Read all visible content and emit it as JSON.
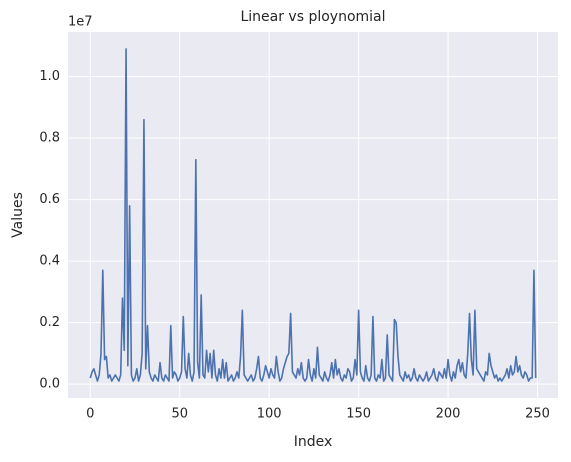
{
  "chart_data": {
    "type": "line",
    "title": "Linear vs ploynomial",
    "xlabel": "Index",
    "ylabel": "Values",
    "offset_label": "1e7",
    "color": "#4c72b0",
    "grid": true,
    "xlim": [
      -12.45,
      261.45
    ],
    "xticks": [
      0,
      50,
      100,
      150,
      200,
      250
    ],
    "ylim": [
      -0.045,
      1.145
    ],
    "yticks": [
      {
        "value": 0,
        "label": "0.0"
      },
      {
        "value": 0.2,
        "label": "0.2"
      },
      {
        "value": 0.4,
        "label": "0.4"
      },
      {
        "value": 0.6,
        "label": "0.6"
      },
      {
        "value": 0.8,
        "label": "0.8"
      },
      {
        "value": 1.0,
        "label": "1.0"
      }
    ],
    "values": [
      0.02,
      0.04,
      0.05,
      0.03,
      0.01,
      0.03,
      0.1,
      0.37,
      0.08,
      0.09,
      0.02,
      0.03,
      0.01,
      0.02,
      0.03,
      0.02,
      0.01,
      0.03,
      0.28,
      0.11,
      1.09,
      0.06,
      0.58,
      0.03,
      0.01,
      0.02,
      0.05,
      0.01,
      0.03,
      0.1,
      0.86,
      0.05,
      0.19,
      0.04,
      0.02,
      0.01,
      0.03,
      0.02,
      0.01,
      0.07,
      0.02,
      0.01,
      0.03,
      0.02,
      0.01,
      0.19,
      0.02,
      0.04,
      0.03,
      0.01,
      0.02,
      0.04,
      0.22,
      0.05,
      0.02,
      0.1,
      0.03,
      0.01,
      0.04,
      0.73,
      0.07,
      0.02,
      0.29,
      0.03,
      0.02,
      0.11,
      0.04,
      0.1,
      0.02,
      0.11,
      0.03,
      0.01,
      0.05,
      0.02,
      0.08,
      0.02,
      0.07,
      0.01,
      0.02,
      0.03,
      0.01,
      0.02,
      0.04,
      0.02,
      0.09,
      0.24,
      0.03,
      0.02,
      0.01,
      0.02,
      0.03,
      0.01,
      0.02,
      0.05,
      0.09,
      0.02,
      0.01,
      0.03,
      0.06,
      0.04,
      0.02,
      0.05,
      0.03,
      0.02,
      0.09,
      0.04,
      0.01,
      0.02,
      0.05,
      0.07,
      0.09,
      0.1,
      0.23,
      0.04,
      0.03,
      0.02,
      0.05,
      0.03,
      0.07,
      0.02,
      0.01,
      0.02,
      0.08,
      0.03,
      0.01,
      0.05,
      0.02,
      0.12,
      0.03,
      0.02,
      0.01,
      0.04,
      0.02,
      0.01,
      0.03,
      0.07,
      0.02,
      0.08,
      0.03,
      0.05,
      0.02,
      0.01,
      0.03,
      0.02,
      0.05,
      0.04,
      0.01,
      0.02,
      0.08,
      0.03,
      0.24,
      0.04,
      0.02,
      0.01,
      0.06,
      0.02,
      0.01,
      0.03,
      0.22,
      0.02,
      0.01,
      0.03,
      0.02,
      0.08,
      0.01,
      0.02,
      0.16,
      0.03,
      0.02,
      0.01,
      0.21,
      0.2,
      0.09,
      0.03,
      0.02,
      0.01,
      0.04,
      0.02,
      0.03,
      0.01,
      0.02,
      0.05,
      0.02,
      0.01,
      0.03,
      0.02,
      0.01,
      0.02,
      0.04,
      0.01,
      0.02,
      0.03,
      0.05,
      0.02,
      0.01,
      0.04,
      0.03,
      0.02,
      0.05,
      0.02,
      0.08,
      0.03,
      0.01,
      0.04,
      0.02,
      0.06,
      0.08,
      0.04,
      0.07,
      0.03,
      0.02,
      0.1,
      0.23,
      0.08,
      0.03,
      0.24,
      0.05,
      0.04,
      0.03,
      0.02,
      0.01,
      0.04,
      0.03,
      0.1,
      0.06,
      0.04,
      0.02,
      0.03,
      0.01,
      0.02,
      0.01,
      0.02,
      0.03,
      0.05,
      0.02,
      0.06,
      0.03,
      0.04,
      0.09,
      0.04,
      0.06,
      0.03,
      0.02,
      0.04,
      0.03,
      0.01,
      0.02,
      0.02,
      0.37,
      0.02
    ]
  }
}
